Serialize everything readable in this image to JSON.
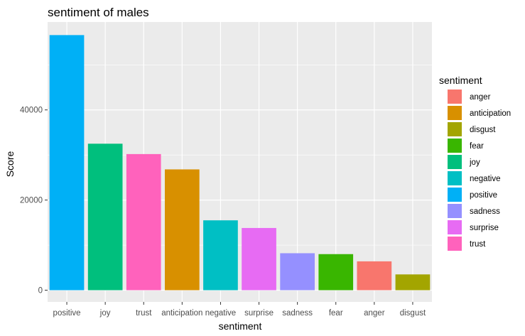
{
  "chart_data": {
    "type": "bar",
    "title": "sentiment of males",
    "xlabel": "sentiment",
    "ylabel": "Score",
    "categories": [
      "positive",
      "joy",
      "trust",
      "anticipation",
      "negative",
      "surprise",
      "sadness",
      "fear",
      "anger",
      "disgust"
    ],
    "values": [
      56600,
      32500,
      30200,
      26800,
      15500,
      13800,
      8200,
      8000,
      6400,
      3500
    ],
    "ylim": [
      -2600,
      59500
    ],
    "yticks": [
      0,
      20000,
      40000
    ],
    "ytick_labels": [
      "0",
      "20000",
      "40000"
    ],
    "grid": true,
    "legend": {
      "title": "sentiment",
      "placement": "right",
      "entries": [
        "anger",
        "anticipation",
        "disgust",
        "fear",
        "joy",
        "negative",
        "positive",
        "sadness",
        "surprise",
        "trust"
      ]
    },
    "colors": {
      "anger": "#F8766D",
      "anticipation": "#D89000",
      "disgust": "#A3A500",
      "fear": "#39B600",
      "joy": "#00BF7D",
      "negative": "#00BFC4",
      "positive": "#00B0F6",
      "sadness": "#9590FF",
      "surprise": "#E76BF3",
      "trust": "#FF62BC"
    },
    "panel_background": "#EBEBEB",
    "grid_color": "#FFFFFF"
  }
}
